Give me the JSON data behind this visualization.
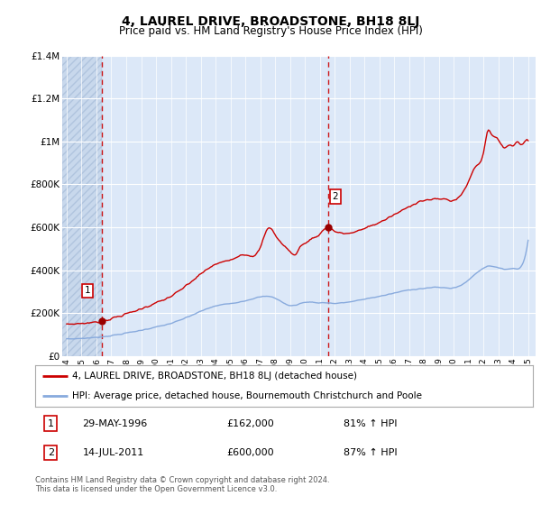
{
  "title": "4, LAUREL DRIVE, BROADSTONE, BH18 8LJ",
  "subtitle": "Price paid vs. HM Land Registry's House Price Index (HPI)",
  "legend_line1": "4, LAUREL DRIVE, BROADSTONE, BH18 8LJ (detached house)",
  "legend_line2": "HPI: Average price, detached house, Bournemouth Christchurch and Poole",
  "footnote": "Contains HM Land Registry data © Crown copyright and database right 2024.\nThis data is licensed under the Open Government Licence v3.0.",
  "sale1_date": "29-MAY-1996",
  "sale1_price": "£162,000",
  "sale1_hpi": "81% ↑ HPI",
  "sale1_year": 1996.38,
  "sale1_value": 162000,
  "sale2_date": "14-JUL-2011",
  "sale2_price": "£600,000",
  "sale2_hpi": "87% ↑ HPI",
  "sale2_year": 2011.54,
  "sale2_value": 600000,
  "ylim": [
    0,
    1400000
  ],
  "yticks": [
    0,
    200000,
    400000,
    600000,
    800000,
    1000000,
    1200000,
    1400000
  ],
  "ytick_labels": [
    "£0",
    "£200K",
    "£400K",
    "£600K",
    "£800K",
    "£1M",
    "£1.2M",
    "£1.4M"
  ],
  "xlim_start": 1993.7,
  "xlim_end": 2025.5,
  "red_line_color": "#cc0000",
  "blue_line_color": "#88aadd",
  "dashed_vline_color": "#cc0000",
  "background_plot": "#dce8f8",
  "background_hatch_color": "#c8d8ec",
  "grid_color": "#ffffff",
  "marker_color": "#990000",
  "annotation_box_color": "#cc0000",
  "title_fontsize": 10,
  "subtitle_fontsize": 8.5,
  "xtick_years": [
    1994,
    1995,
    1996,
    1997,
    1998,
    1999,
    2000,
    2001,
    2002,
    2003,
    2004,
    2005,
    2006,
    2007,
    2008,
    2009,
    2010,
    2011,
    2012,
    2013,
    2014,
    2015,
    2016,
    2017,
    2018,
    2019,
    2020,
    2021,
    2022,
    2023,
    2024,
    2025
  ]
}
